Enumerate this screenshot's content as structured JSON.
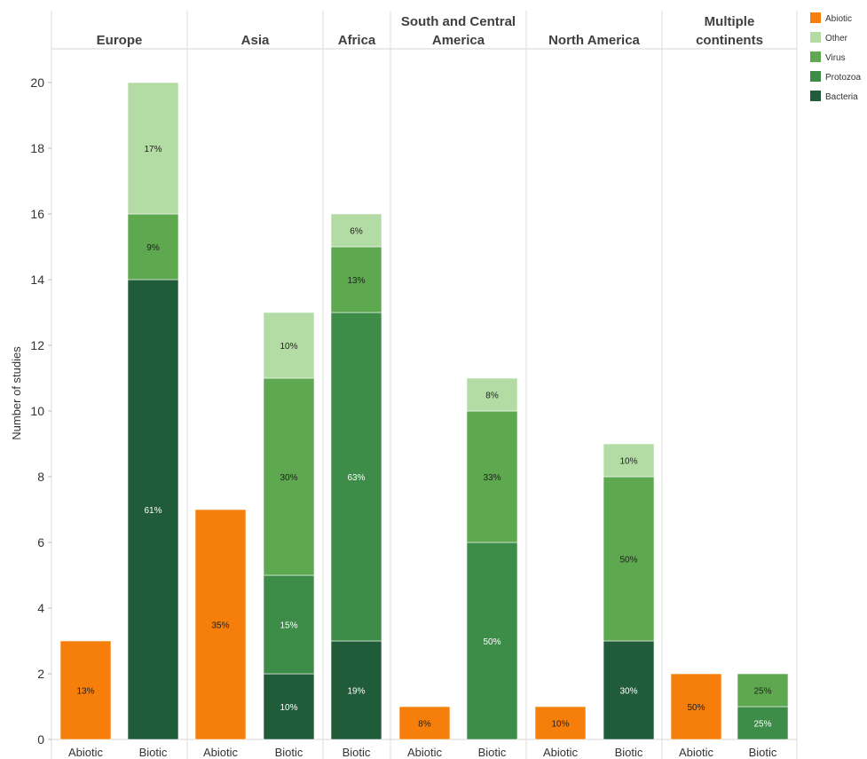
{
  "chart_data": {
    "type": "bar",
    "stacked": true,
    "ylabel": "Number of studies",
    "ylim": [
      0,
      21
    ],
    "yticks": [
      0,
      2,
      4,
      6,
      8,
      10,
      12,
      14,
      16,
      18,
      20
    ],
    "grid": false,
    "legend_position": "top-right",
    "legend": [
      {
        "name": "Abiotic",
        "color": "#f57f0a"
      },
      {
        "name": "Other",
        "color": "#b2dca3"
      },
      {
        "name": "Virus",
        "color": "#5ea84f"
      },
      {
        "name": "Protozoa",
        "color": "#3d8c48"
      },
      {
        "name": "Bacteria",
        "color": "#215c3a"
      }
    ],
    "panels": [
      {
        "title": [
          "Europe"
        ],
        "bars": [
          {
            "category": "Abiotic",
            "segments": [
              {
                "series": "Abiotic",
                "value": 3,
                "label": "13%"
              }
            ]
          },
          {
            "category": "Biotic",
            "segments": [
              {
                "series": "Bacteria",
                "value": 14,
                "label": "61%"
              },
              {
                "series": "Virus",
                "value": 2,
                "label": "9%"
              },
              {
                "series": "Other",
                "value": 4,
                "label": "17%"
              }
            ]
          }
        ]
      },
      {
        "title": [
          "Asia"
        ],
        "bars": [
          {
            "category": "Abiotic",
            "segments": [
              {
                "series": "Abiotic",
                "value": 7,
                "label": "35%"
              }
            ]
          },
          {
            "category": "Biotic",
            "segments": [
              {
                "series": "Bacteria",
                "value": 2,
                "label": "10%"
              },
              {
                "series": "Protozoa",
                "value": 3,
                "label": "15%"
              },
              {
                "series": "Virus",
                "value": 6,
                "label": "30%"
              },
              {
                "series": "Other",
                "value": 2,
                "label": "10%"
              }
            ]
          }
        ]
      },
      {
        "title": [
          "Africa"
        ],
        "bars": [
          {
            "category": "Biotic",
            "segments": [
              {
                "series": "Bacteria",
                "value": 3,
                "label": "19%"
              },
              {
                "series": "Protozoa",
                "value": 10,
                "label": "63%"
              },
              {
                "series": "Virus",
                "value": 2,
                "label": "13%"
              },
              {
                "series": "Other",
                "value": 1,
                "label": "6%"
              }
            ]
          }
        ]
      },
      {
        "title": [
          "South and Central",
          "America"
        ],
        "bars": [
          {
            "category": "Abiotic",
            "segments": [
              {
                "series": "Abiotic",
                "value": 1,
                "label": "8%"
              }
            ]
          },
          {
            "category": "Biotic",
            "segments": [
              {
                "series": "Protozoa",
                "value": 6,
                "label": "50%"
              },
              {
                "series": "Virus",
                "value": 4,
                "label": "33%"
              },
              {
                "series": "Other",
                "value": 1,
                "label": "8%"
              }
            ]
          }
        ]
      },
      {
        "title": [
          "North America"
        ],
        "bars": [
          {
            "category": "Abiotic",
            "segments": [
              {
                "series": "Abiotic",
                "value": 1,
                "label": "10%"
              }
            ]
          },
          {
            "category": "Biotic",
            "segments": [
              {
                "series": "Bacteria",
                "value": 3,
                "label": "30%"
              },
              {
                "series": "Virus",
                "value": 5,
                "label": "50%"
              },
              {
                "series": "Other",
                "value": 1,
                "label": "10%"
              }
            ]
          }
        ]
      },
      {
        "title": [
          "Multiple",
          "continents"
        ],
        "bars": [
          {
            "category": "Abiotic",
            "segments": [
              {
                "series": "Abiotic",
                "value": 2,
                "label": "50%"
              }
            ]
          },
          {
            "category": "Biotic",
            "segments": [
              {
                "series": "Protozoa",
                "value": 1,
                "label": "25%"
              },
              {
                "series": "Virus",
                "value": 1,
                "label": "25%"
              }
            ]
          }
        ]
      }
    ]
  }
}
